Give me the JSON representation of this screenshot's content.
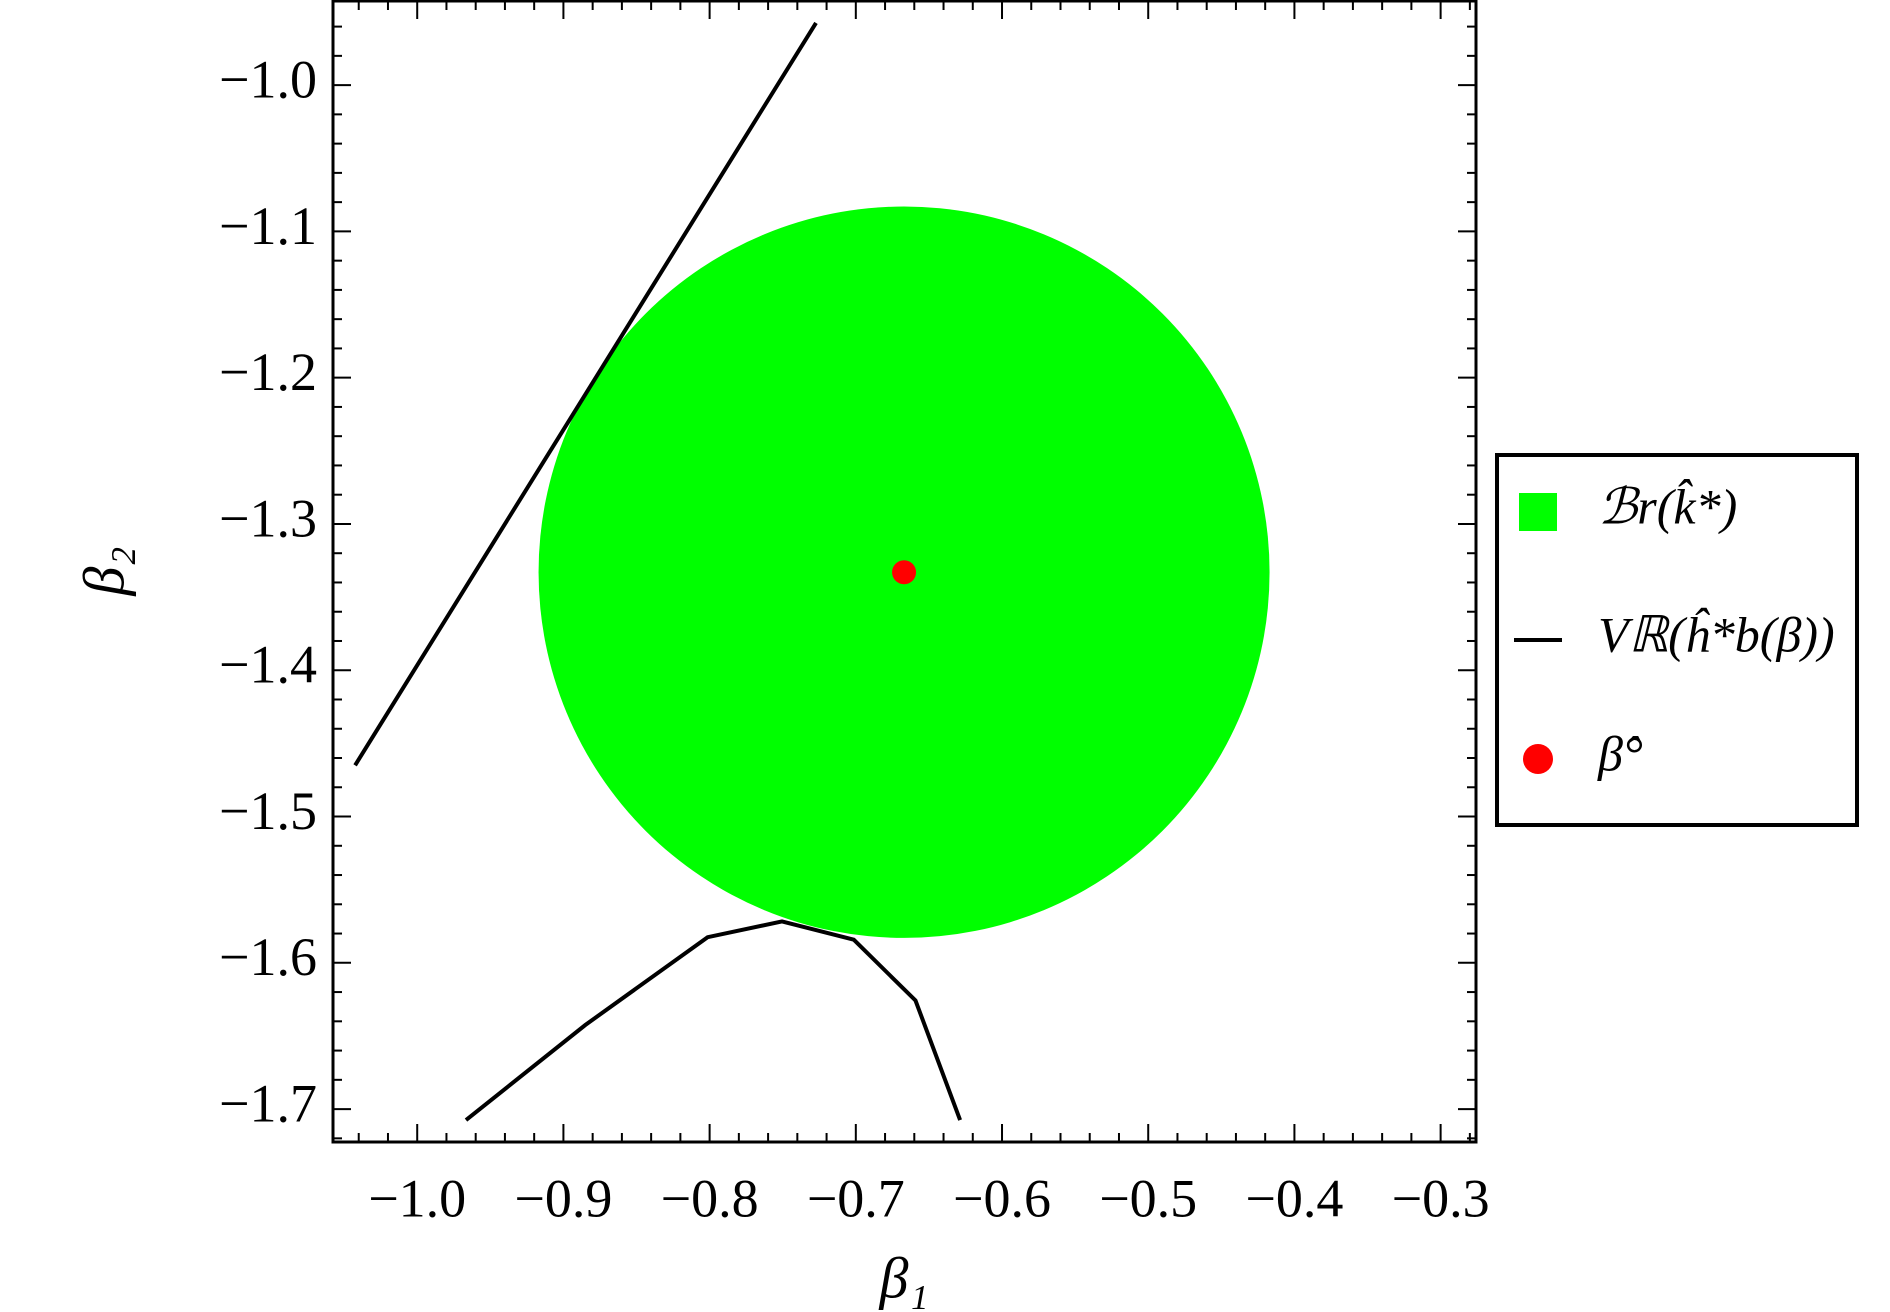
{
  "chart_data": {
    "type": "line",
    "x_label": "β₁",
    "y_label": "β₂",
    "xlim": [
      -1.0576,
      -0.2758
    ],
    "ylim": [
      -1.7225,
      -0.9425
    ],
    "xticks": [
      {
        "value": -1.0,
        "label": "−1.0"
      },
      {
        "value": -0.9,
        "label": "−0.9"
      },
      {
        "value": -0.8,
        "label": "−0.8"
      },
      {
        "value": -0.7,
        "label": "−0.7"
      },
      {
        "value": -0.6,
        "label": "−0.6"
      },
      {
        "value": -0.5,
        "label": "−0.5"
      },
      {
        "value": -0.4,
        "label": "−0.4"
      },
      {
        "value": -0.3,
        "label": "−0.3"
      }
    ],
    "yticks": [
      {
        "value": -1.0,
        "label": "−1.0"
      },
      {
        "value": -1.1,
        "label": "−1.1"
      },
      {
        "value": -1.2,
        "label": "−1.2"
      },
      {
        "value": -1.3,
        "label": "−1.3"
      },
      {
        "value": -1.4,
        "label": "−1.4"
      },
      {
        "value": -1.5,
        "label": "−1.5"
      },
      {
        "value": -1.6,
        "label": "−1.6"
      },
      {
        "value": -1.7,
        "label": "−1.7"
      }
    ],
    "minor_subdivisions": 5,
    "legend": "right",
    "series": [
      {
        "name": "ℬr(k̂*)",
        "kind": "disk",
        "color": "#00ff00",
        "x": [
          -0.667
        ],
        "y": [
          -1.333
        ],
        "r": 0.25
      },
      {
        "name": "Vℝ(ĥ*b(β))",
        "kind": "line",
        "color": "#000000",
        "x": [
          -0.7272,
          -1.0425,
          null,
          -0.9666,
          -0.885,
          -0.8014,
          -0.7505,
          -0.7014,
          -0.6592,
          -0.6287
        ],
        "y": [
          -0.9575,
          -1.465,
          null,
          -1.7075,
          -1.6425,
          -1.5825,
          -1.5717,
          -1.5842,
          -1.6258,
          -1.7075
        ]
      },
      {
        "name": "β̂°",
        "kind": "point",
        "color": "#ff0000",
        "x": [
          -0.667
        ],
        "y": [
          -1.333
        ]
      }
    ]
  }
}
